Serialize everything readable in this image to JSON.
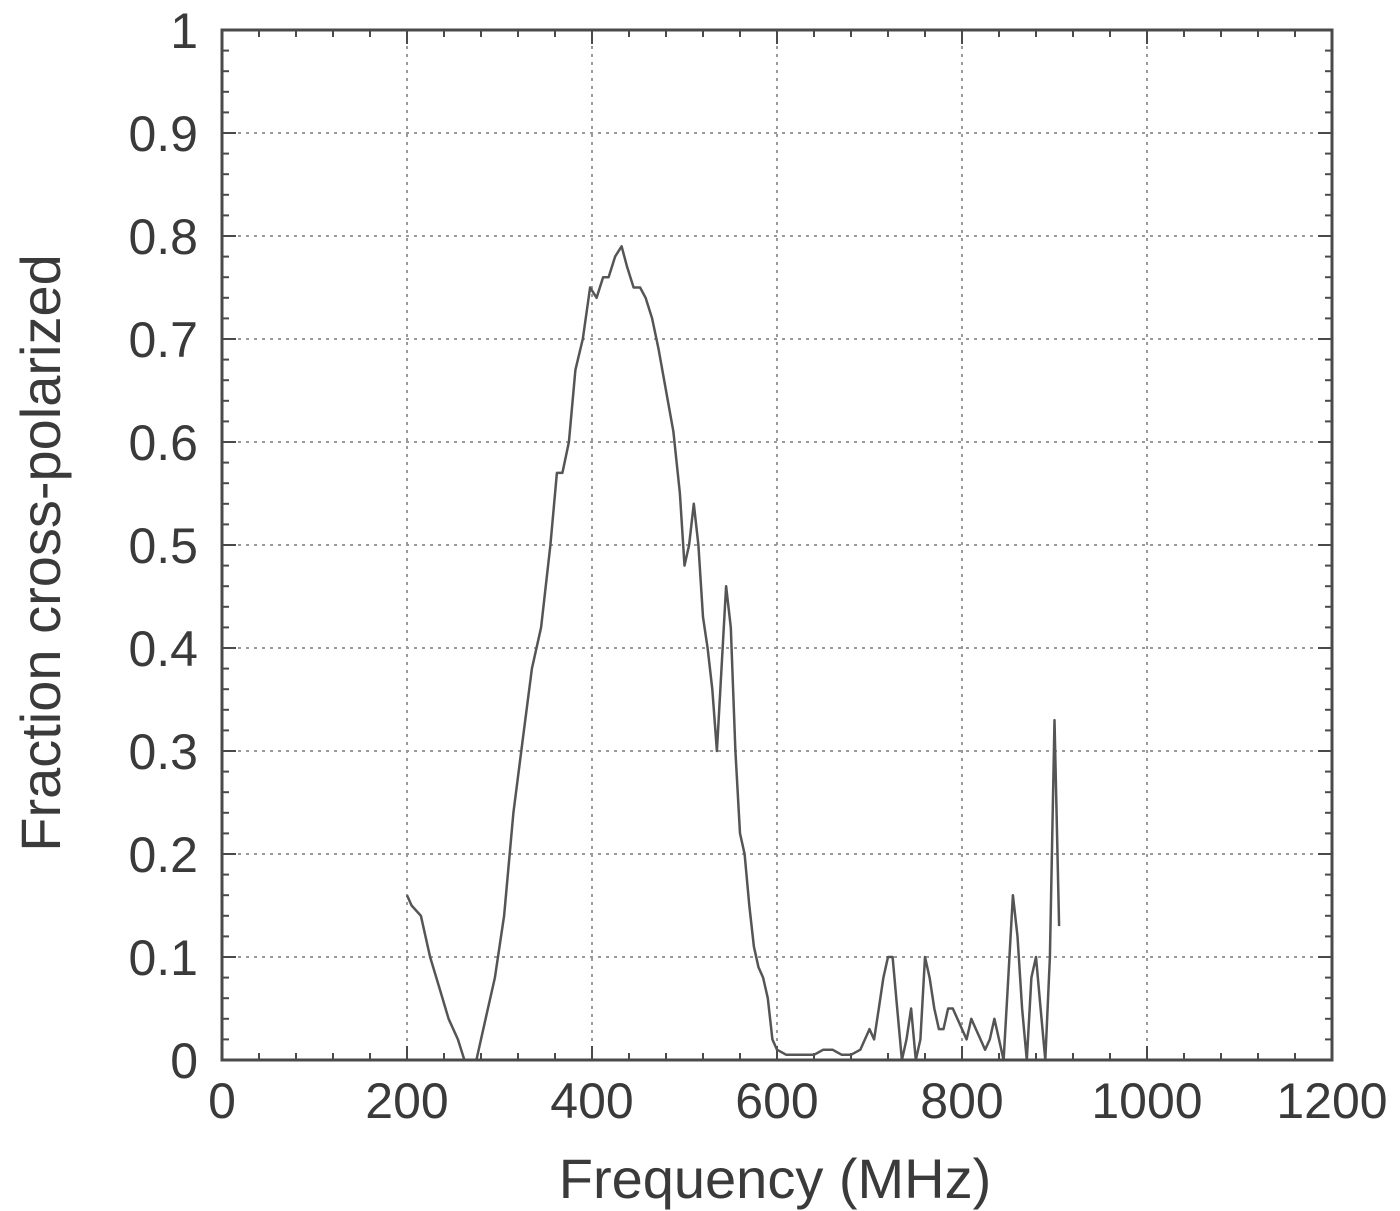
{
  "chart_data": {
    "type": "line",
    "title": "",
    "xlabel": "Frequency (MHz)",
    "ylabel": "Fraction cross-polarized",
    "xlim": [
      0,
      1200
    ],
    "ylim": [
      0,
      1
    ],
    "grid": true,
    "x_ticks": [
      0,
      200,
      400,
      600,
      800,
      1000,
      1200
    ],
    "x_tick_labels": [
      "0",
      "200",
      "400",
      "600",
      "800",
      "1000",
      "1200"
    ],
    "y_ticks": [
      0,
      0.1,
      0.2,
      0.3,
      0.4,
      0.5,
      0.6,
      0.7,
      0.8,
      0.9,
      1
    ],
    "y_tick_labels": [
      "0",
      "0.1",
      "0.2",
      "0.3",
      "0.4",
      "0.5",
      "0.6",
      "0.7",
      "0.8",
      "0.9",
      "1"
    ],
    "line_color": "#555555",
    "series": [
      {
        "x": [
          200,
          205,
          215,
          225,
          235,
          245,
          255,
          262,
          268,
          275,
          285,
          295,
          305,
          315,
          325,
          335,
          345,
          355,
          362,
          368,
          375,
          382,
          390,
          398,
          405,
          412,
          418,
          425,
          432,
          438,
          445,
          452,
          458,
          465,
          472,
          480,
          488,
          495,
          500,
          505,
          510,
          515,
          520,
          525,
          530,
          535,
          540,
          545,
          550,
          555,
          560,
          565,
          570,
          575,
          580,
          585,
          590,
          595,
          600,
          610,
          620,
          630,
          640,
          650,
          660,
          670,
          680,
          690,
          700,
          705,
          710,
          715,
          720,
          725,
          730,
          735,
          740,
          745,
          750,
          755,
          760,
          765,
          770,
          775,
          780,
          785,
          790,
          795,
          800,
          805,
          810,
          815,
          820,
          825,
          830,
          835,
          840,
          845,
          850,
          855,
          860,
          865,
          870,
          875,
          880,
          885,
          890,
          895,
          900,
          905
        ],
        "y": [
          0.16,
          0.15,
          0.14,
          0.1,
          0.07,
          0.04,
          0.02,
          0.0,
          0.0,
          0.0,
          0.04,
          0.08,
          0.14,
          0.24,
          0.31,
          0.38,
          0.42,
          0.5,
          0.57,
          0.57,
          0.6,
          0.67,
          0.7,
          0.75,
          0.74,
          0.76,
          0.76,
          0.78,
          0.79,
          0.77,
          0.75,
          0.75,
          0.74,
          0.72,
          0.69,
          0.65,
          0.61,
          0.55,
          0.48,
          0.5,
          0.54,
          0.5,
          0.43,
          0.4,
          0.36,
          0.3,
          0.38,
          0.46,
          0.42,
          0.3,
          0.22,
          0.2,
          0.15,
          0.11,
          0.09,
          0.08,
          0.06,
          0.02,
          0.01,
          0.005,
          0.005,
          0.005,
          0.005,
          0.01,
          0.01,
          0.005,
          0.005,
          0.01,
          0.03,
          0.02,
          0.05,
          0.08,
          0.1,
          0.1,
          0.05,
          0.0,
          0.02,
          0.05,
          0.0,
          0.02,
          0.1,
          0.08,
          0.05,
          0.03,
          0.03,
          0.05,
          0.05,
          0.04,
          0.03,
          0.02,
          0.04,
          0.03,
          0.02,
          0.01,
          0.02,
          0.04,
          0.02,
          0.0,
          0.08,
          0.16,
          0.12,
          0.05,
          0.0,
          0.08,
          0.1,
          0.05,
          0.0,
          0.1,
          0.33,
          0.13
        ]
      }
    ]
  }
}
